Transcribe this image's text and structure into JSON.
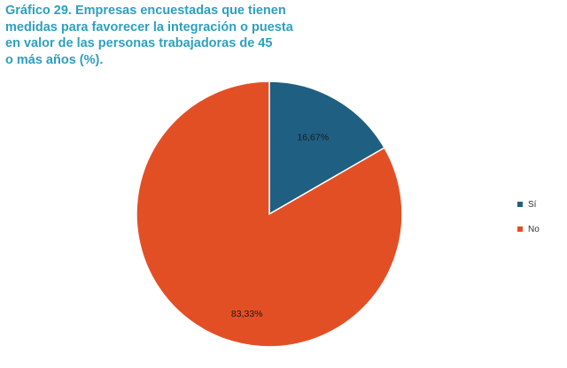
{
  "title_lines": [
    "Gráfico 29. Empresas encuestadas que tienen",
    "medidas para favorecer la integración o puesta",
    "en valor de las personas trabajadoras de 45",
    "o más años (%)."
  ],
  "colors": {
    "title": "#2f9fbe",
    "si": "#1f5f82",
    "no": "#e34f25"
  },
  "chart_data": {
    "type": "pie",
    "title": "Gráfico 29. Empresas encuestadas que tienen medidas para favorecer la integración o puesta en valor de las personas trabajadoras de 45 o más años (%).",
    "categories": [
      "Sí",
      "No"
    ],
    "values": [
      16.67,
      83.33
    ],
    "data_labels": [
      "16,67%",
      "83,33%"
    ],
    "legend_position": "right"
  }
}
